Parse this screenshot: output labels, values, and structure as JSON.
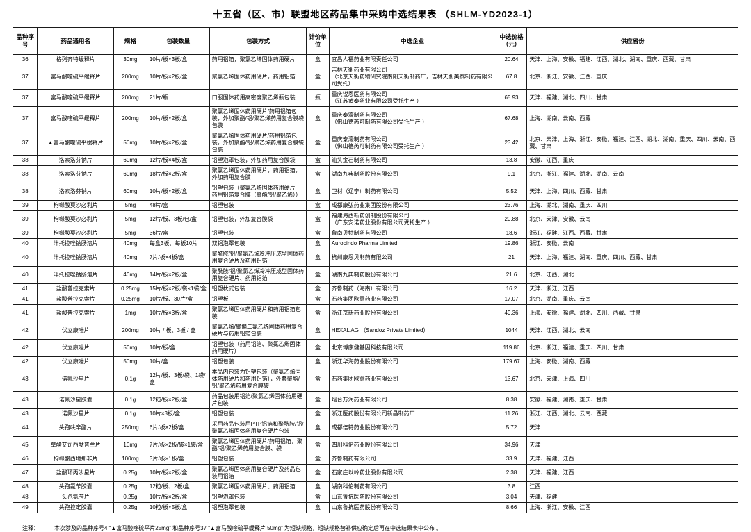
{
  "title": "十五省（区、市）联盟地区药品集中采购中选结果表 （SHLM-YD2023-1）",
  "note": {
    "label": "注释：",
    "text": "本次涉及的品种序号4 “▲富马酸喹硫平片25mg” 和品种序号37 “▲富马酸喹硫平缓释片 50mg” 为短缺规格，短缺规格替补供应确定后再在中选结果表中公布 。"
  },
  "table": {
    "col_keys": [
      "seq",
      "name",
      "spec",
      "pack-qty",
      "pack-method",
      "unit",
      "company",
      "price",
      "provinces"
    ],
    "headers": [
      "品种序号",
      "药品通用名",
      "规格",
      "包装数量",
      "包装方式",
      "计价单位",
      "中选企业",
      "中选价格\n（元）",
      "供应省份"
    ],
    "rows": [
      [
        "36",
        "格列齐特缓释片",
        "30mg",
        "10片/板×3板/盒",
        "药用铝箔，聚氯乙烯固体药用硬片",
        "盒",
        "宜昌人福药业有限责任公司",
        "20.64",
        "天津、上海、安徽、福建、江西、湖北、湖南、重庆、西藏、甘肃"
      ],
      [
        "37",
        "富马酸喹硫平缓释片",
        "200mg",
        "10片/板×2板/盒",
        "聚氯乙烯固体药用硬片，药用铝箔",
        "盒",
        "吉林天衡药业有限公司\n（北京天衡药物研究院南阳天衡制药厂，吉林天衡美泰制药有限公司受托）",
        "67.8",
        "北京、浙江、安徽、江西、重庆"
      ],
      [
        "37",
        "富马酸喹硫平缓释片",
        "200mg",
        "21片/瓶",
        "口服固体药用高密度聚乙烯瓶包装",
        "瓶",
        "重庆锐恩医药有限公司\n（江苏黄泰药业有限公司受托生产 ）",
        "65.93",
        "天津、福建、湖北、四川、甘肃"
      ],
      [
        "37",
        "富马酸喹硫平缓释片",
        "200mg",
        "10片/板×2板/盒",
        "聚氯乙烯固体药用硬片/药用铝箔包装，外加聚酯/铝/聚乙烯药用复合膜袋包装",
        "盒",
        "重庆泰濠制药有限公司\n（佛山德芮可制药有限公司受托生产 ）",
        "67.68",
        "上海、湖南、云南、西藏"
      ],
      [
        "37",
        "▲富马酸喹硫平缓释片",
        "50mg",
        "10片/板×2板/盒",
        "聚氯乙烯固体药用硬片/药用铝箔包装，外加聚酯/铝/聚乙烯药用复合膜袋包装",
        "盒",
        "重庆泰濠制药有限公司\n（佛山德芮可制药有限公司受托生产 ）",
        "23.42",
        "北京、天津、上海、浙江、安徽、福建、江西、湖北、湖南、重庆、四川、云南、西藏、甘肃"
      ],
      [
        "38",
        "洛索洛芬钠片",
        "60mg",
        "12片/板×4板/盒",
        "铝塑泡罩包装，外加药用复合膜袋",
        "盒",
        "汕头金石制药有限公司",
        "13.8",
        "安徽、江西、重庆"
      ],
      [
        "38",
        "洛索洛芬钠片",
        "60mg",
        "18片/板×2板/盒",
        "聚氯乙烯固体药用硬片，药用铝箔，外加药用复合膜",
        "盒",
        "湖南九典制药股份有限公司",
        "9.1",
        "北京、浙江、福建、湖北、湖南、云南"
      ],
      [
        "38",
        "洛索洛芬钠片",
        "60mg",
        "10片/板×2板/盒",
        "铝塑包装（聚氯乙烯固体药用硬片＋药用铝箔复合膜（聚酯/铝/聚乙烯））",
        "盒",
        "卫材（辽宁）制药有限公司",
        "5.52",
        "天津、上海、四川、西藏、甘肃"
      ],
      [
        "39",
        "枸橼酸莫沙必利片",
        "5mg",
        "48片/盒",
        "铝塑包装",
        "盒",
        "成都康弘药业集团股份有限公司",
        "23.76",
        "上海、湖北、湖南、重庆、四川"
      ],
      [
        "39",
        "枸橼酸莫沙必利片",
        "5mg",
        "12片/板、3板/包/盒",
        "铝塑包装，外加复合膜袋",
        "盒",
        "福建海西新药创制股份有限公司\n（广东安诺药业股份有限公司受托生产 ）",
        "20.88",
        "北京、天津、安徽、云南"
      ],
      [
        "39",
        "枸橼酸莫沙必利片",
        "5mg",
        "36片/盒",
        "铝塑包装",
        "盒",
        "鲁南贝特制药有限公司",
        "18.6",
        "浙江、福建、江西、西藏、甘肃"
      ],
      [
        "40",
        "泮托拉唑钠肠溶片",
        "40mg",
        "每盒3板、每板10片",
        "双铝泡罩包装",
        "盒",
        "Aurobindo Pharma Limited",
        "19.86",
        "浙江、安徽、云南"
      ],
      [
        "40",
        "泮托拉唑钠肠溶片",
        "40mg",
        "7片/板×4板/盒",
        "聚酰胺/铝/聚氯乙烯冷冲压成型固体药用复合硬片及药用铝箔",
        "盒",
        "杭州康恩贝制药有限公司",
        "21",
        "天津、上海、福建、湖南、重庆、四川、西藏、甘肃"
      ],
      [
        "40",
        "泮托拉唑钠肠溶片",
        "40mg",
        "14片/板×2板/盒",
        "聚酰胺/铝/聚氯乙烯冷冲压成型固体药用复合硬片、药用铝箔",
        "盒",
        "湖南九典制药股份有限公司",
        "21.6",
        "北京、江西、湖北"
      ],
      [
        "41",
        "盐酸普拉克索片",
        "0.25mg",
        "15片/板×2板/袋×1袋/盒",
        "铝塑枕式包装",
        "盒",
        "齐鲁制药（海南）有限公司",
        "16.2",
        "天津、浙江、江西"
      ],
      [
        "41",
        "盐酸普拉克索片",
        "0.25mg",
        "10片/板、30片/盒",
        "铝塑板",
        "盒",
        "石药集团欧意药业有限公司",
        "17.07",
        "北京、湖南、重庆、云南"
      ],
      [
        "41",
        "盐酸普拉克索片",
        "1mg",
        "10片/板×3板/盒",
        "聚氯乙烯固体药用硬片和药用铝箔包装",
        "盒",
        "浙江京新药业股份有限公司",
        "49.36",
        "上海、安徽、福建、湖北、四川、西藏、甘肃"
      ],
      [
        "42",
        "伏立康唑片",
        "200mg",
        "10片 / 板、3板 / 盒",
        "聚氯乙烯/聚偏二氯乙烯固体药用复合硬片与药用铝箔包装",
        "盒",
        "HEXAL AG （Sandoz Private Limited）",
        "1044",
        "天津、江西、湖北、云南"
      ],
      [
        "42",
        "伏立康唑片",
        "50mg",
        "10片/板/盒",
        "铝塑包装（药用铝箔、聚氯乙烯固体药用硬片）",
        "盒",
        "北京博康健基因科技有限公司",
        "119.86",
        "北京、浙江、福建、重庆、四川、甘肃"
      ],
      [
        "42",
        "伏立康唑片",
        "50mg",
        "10片/盒",
        "铝塑包装",
        "盒",
        "浙江华海药业股份有限公司",
        "179.67",
        "上海、安徽、湖南、西藏"
      ],
      [
        "43",
        "诺氟沙星片",
        "0.1g",
        "12片/板、3板/袋、1袋/盒",
        "本品内包装为铝塑包装（聚氯乙烯固体药用硬片和药用铝箔），外套聚酯/铝/聚乙烯药用复合膜袋",
        "盒",
        "石药集团欧意药业有限公司",
        "13.67",
        "北京、天津、上海、四川"
      ],
      [
        "43",
        "诺氟沙星胶囊",
        "0.1g",
        "12粒/板×2板/盒",
        "药品包装用铝箔/聚氯乙烯固体药用硬片包装",
        "盒",
        "烟台万润药业有限公司",
        "8.38",
        "安徽、福建、湖南、重庆、甘肃"
      ],
      [
        "43",
        "诺氟沙星片",
        "0.1g",
        "10片×3板/盒",
        "铝塑包装",
        "盒",
        "浙江医药股份有限公司新昌制药厂",
        "11.26",
        "浙江、江西、湖北、云南、西藏"
      ],
      [
        "44",
        "头孢呋辛酯片",
        "250mg",
        "6片/板×2板/盒",
        "采用药品包装用PTP铝箔和聚酰胺/铝/聚氯乙烯固体药用复合硬片包装",
        "盒",
        "成都倍特药业股份有限公司",
        "5.72",
        "天津"
      ],
      [
        "45",
        "草酸艾司西酞普兰片",
        "10mg",
        "7片/板×2板/袋×1袋/盒",
        "聚氯乙烯固体药用硬片/药用铝箔，聚酯/铝/聚乙烯药用复合膜、袋",
        "盒",
        "四川科伦药业股份有限公司",
        "34.96",
        "天津"
      ],
      [
        "46",
        "枸橼酸西地那非片",
        "100mg",
        "3片/板×1板/盒",
        "铝塑包装",
        "盒",
        "齐鲁制药有限公司",
        "33.9",
        "天津、福建、江西"
      ],
      [
        "47",
        "盐酸环丙沙星片",
        "0.25g",
        "10片/板×2板/盒",
        "聚氯乙烯固体药用复合硬片及药品包装用铝箔",
        "盒",
        "石家庄以岭药业股份有限公司",
        "2.38",
        "天津、福建、江西"
      ],
      [
        "48",
        "头孢氨苄胶囊",
        "0.25g",
        "12粒/板、2板/盒",
        "聚氯乙烯固体药用硬片、药用铝箔",
        "盒",
        "湖南科伦制药有限公司",
        "3.8",
        "江西"
      ],
      [
        "48",
        "头孢氨苄片",
        "0.25g",
        "10片/板×2板/盒",
        "铝塑泡罩包装",
        "盒",
        "山东鲁抗医药股份有限公司",
        "3.04",
        "天津、福建"
      ],
      [
        "49",
        "头孢拉定胶囊",
        "0.25g",
        "10粒/板×5板/盒",
        "铝塑泡罩包装",
        "盒",
        "山东鲁抗医药股份有限公司",
        "8.66",
        "上海、浙江、安徽、江西"
      ]
    ]
  }
}
